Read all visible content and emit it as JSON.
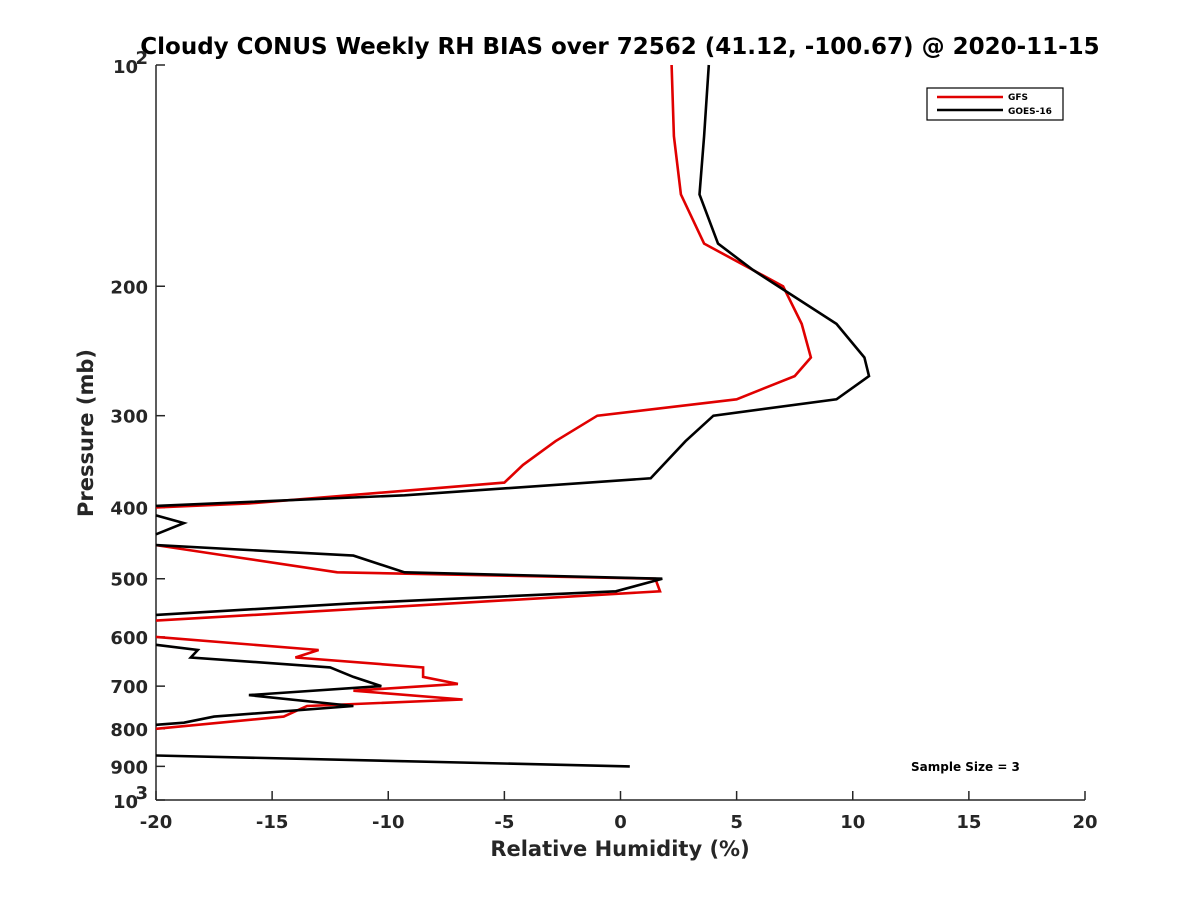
{
  "chart_data": {
    "type": "line",
    "title": "Cloudy CONUS Weekly RH BIAS over 72562 (41.12, -100.67) @ 2020-11-15",
    "xlabel": "Relative Humidity (%)",
    "ylabel": "Pressure (mb)",
    "xlim": [
      -20,
      20
    ],
    "ylim": [
      100,
      1000
    ],
    "y_scale": "log",
    "y_reversed": true,
    "x_ticks": [
      -20,
      -15,
      -10,
      -5,
      0,
      5,
      10,
      15,
      20
    ],
    "x_tick_labels": [
      "-20",
      "-15",
      "-10",
      "-5",
      "0",
      "5",
      "10",
      "15",
      "20"
    ],
    "y_ticks": [
      200,
      300,
      400,
      500,
      600,
      700,
      800,
      900
    ],
    "y_tick_labels": [
      "200",
      "300",
      "400",
      "500",
      "600",
      "700",
      "800",
      "900"
    ],
    "y_decade_labels": [
      {
        "value": 100,
        "base": "10",
        "exp": "2"
      },
      {
        "value": 1000,
        "base": "10",
        "exp": "3"
      }
    ],
    "grid": false,
    "legend_position": "top-right",
    "annotation": "Sample Size = 3",
    "series": [
      {
        "name": "GFS",
        "color": "#e00000",
        "points": [
          [
            2.2,
            100
          ],
          [
            2.3,
            125
          ],
          [
            2.6,
            150
          ],
          [
            3.6,
            175
          ],
          [
            7.0,
            200
          ],
          [
            7.8,
            225
          ],
          [
            8.2,
            250
          ],
          [
            7.5,
            265
          ],
          [
            5.0,
            285
          ],
          [
            -1.0,
            300
          ],
          [
            -2.8,
            325
          ],
          [
            -4.2,
            350
          ],
          [
            -5.0,
            370
          ],
          [
            -16.0,
            395
          ],
          [
            -20.0,
            400
          ],
          [
            null,
            null
          ],
          [
            -20.0,
            450
          ],
          [
            -17.0,
            465
          ],
          [
            -12.2,
            490
          ],
          [
            1.5,
            500
          ],
          [
            1.7,
            520
          ],
          [
            -20.0,
            570
          ],
          [
            null,
            null
          ],
          [
            -20.0,
            600
          ],
          [
            -13.0,
            625
          ],
          [
            -14.0,
            640
          ],
          [
            -8.5,
            660
          ],
          [
            -8.5,
            680
          ],
          [
            -7.0,
            695
          ],
          [
            -11.5,
            710
          ],
          [
            -6.8,
            730
          ],
          [
            -13.5,
            745
          ],
          [
            -14.5,
            770
          ],
          [
            -20.0,
            800
          ]
        ]
      },
      {
        "name": "GOES-16",
        "color": "#000000",
        "points": [
          [
            3.8,
            100
          ],
          [
            3.6,
            125
          ],
          [
            3.4,
            150
          ],
          [
            4.2,
            175
          ],
          [
            5.7,
            190
          ],
          [
            9.3,
            225
          ],
          [
            10.5,
            250
          ],
          [
            10.7,
            265
          ],
          [
            9.3,
            285
          ],
          [
            4.0,
            300
          ],
          [
            2.8,
            325
          ],
          [
            1.3,
            365
          ],
          [
            -9.3,
            385
          ],
          [
            -20.0,
            398
          ],
          [
            null,
            null
          ],
          [
            -20.0,
            410
          ],
          [
            -18.8,
            420
          ],
          [
            -20.0,
            435
          ],
          [
            null,
            null
          ],
          [
            -20.0,
            450
          ],
          [
            -11.5,
            465
          ],
          [
            -9.3,
            490
          ],
          [
            1.8,
            500
          ],
          [
            -0.2,
            520
          ],
          [
            -11.5,
            540
          ],
          [
            -20.0,
            560
          ],
          [
            null,
            null
          ],
          [
            -20.0,
            615
          ],
          [
            -18.2,
            625
          ],
          [
            -18.5,
            640
          ],
          [
            -12.5,
            660
          ],
          [
            -11.5,
            680
          ],
          [
            -10.3,
            700
          ],
          [
            -16.0,
            720
          ],
          [
            -11.5,
            745
          ],
          [
            -17.5,
            770
          ],
          [
            -18.8,
            785
          ],
          [
            -20.0,
            790
          ],
          [
            null,
            null
          ],
          [
            -20.0,
            870
          ],
          [
            0.4,
            900
          ]
        ]
      }
    ]
  }
}
